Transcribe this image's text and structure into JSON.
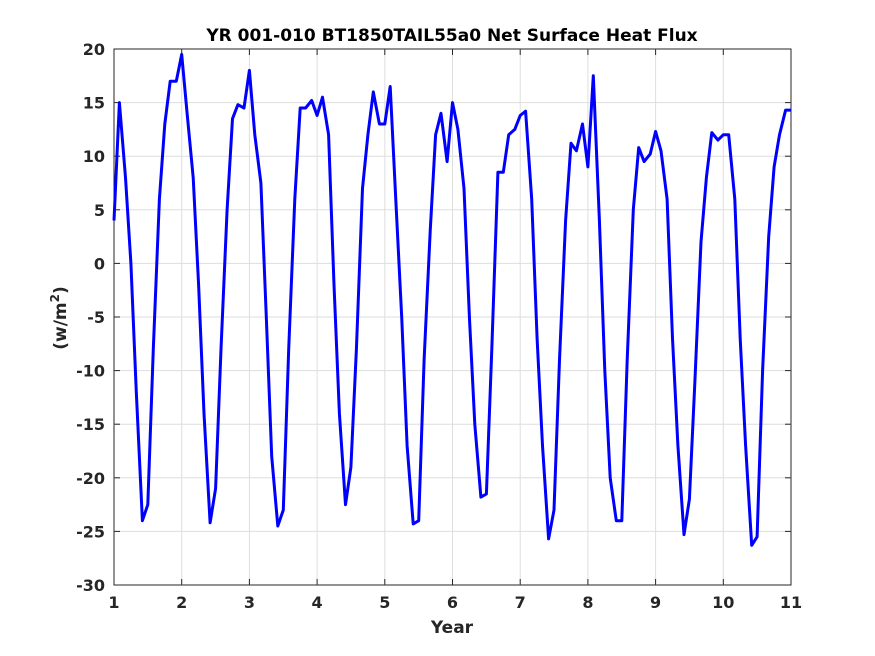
{
  "chart_data": {
    "type": "line",
    "title": "YR 001-010 BT1850TAIL55a0 Net Surface Heat Flux",
    "xlabel": "Year",
    "ylabel": "(w/m",
    "ylabel_superscript": "2",
    "ylabel_suffix": ")",
    "xlim": [
      1,
      11
    ],
    "ylim": [
      -30,
      20
    ],
    "xticks": [
      1,
      2,
      3,
      4,
      5,
      6,
      7,
      8,
      9,
      10,
      11
    ],
    "yticks": [
      -30,
      -25,
      -20,
      -15,
      -10,
      -5,
      0,
      5,
      10,
      15,
      20
    ],
    "grid": true,
    "series": [
      {
        "color": "#0000ff",
        "x": [
          1.0,
          1.08,
          1.17,
          1.25,
          1.33,
          1.42,
          1.5,
          1.58,
          1.67,
          1.75,
          1.83,
          1.92,
          2.0,
          2.08,
          2.17,
          2.25,
          2.33,
          2.42,
          2.5,
          2.58,
          2.67,
          2.75,
          2.83,
          2.92,
          3.0,
          3.08,
          3.17,
          3.25,
          3.33,
          3.42,
          3.5,
          3.58,
          3.67,
          3.75,
          3.83,
          3.92,
          4.0,
          4.08,
          4.17,
          4.25,
          4.33,
          4.42,
          4.5,
          4.58,
          4.67,
          4.75,
          4.83,
          4.92,
          5.0,
          5.08,
          5.17,
          5.25,
          5.33,
          5.42,
          5.5,
          5.58,
          5.67,
          5.75,
          5.83,
          5.92,
          6.0,
          6.08,
          6.17,
          6.25,
          6.33,
          6.42,
          6.5,
          6.58,
          6.67,
          6.75,
          6.83,
          6.92,
          7.0,
          7.08,
          7.17,
          7.25,
          7.33,
          7.42,
          7.5,
          7.58,
          7.67,
          7.75,
          7.83,
          7.92,
          8.0,
          8.08,
          8.17,
          8.25,
          8.33,
          8.42,
          8.5,
          8.58,
          8.67,
          8.75,
          8.83,
          8.92,
          9.0,
          9.08,
          9.17,
          9.25,
          9.33,
          9.42,
          9.5,
          9.58,
          9.67,
          9.75,
          9.83,
          9.92,
          10.0,
          10.08,
          10.17,
          10.25,
          10.33,
          10.42,
          10.5,
          10.58,
          10.67,
          10.75,
          10.83,
          10.92,
          11.0
        ],
        "y": [
          4,
          15,
          8,
          0,
          -12,
          -24,
          -22.5,
          -8,
          6,
          13,
          17,
          17,
          19.5,
          14,
          8,
          -2,
          -14,
          -24.2,
          -21,
          -8,
          5,
          13.5,
          14.8,
          14.5,
          18,
          12,
          7.5,
          -5,
          -18,
          -24.5,
          -23,
          -8,
          6,
          14.5,
          14.5,
          15.2,
          13.8,
          15.5,
          12,
          -2,
          -14,
          -22.5,
          -19,
          -8,
          7,
          12,
          16,
          13,
          13,
          16.5,
          5,
          -5,
          -17,
          -24.3,
          -24,
          -9,
          3,
          12,
          14,
          9.5,
          15,
          12.5,
          7,
          -5,
          -15,
          -21.8,
          -21.5,
          -8,
          8.5,
          8.5,
          12,
          12.5,
          13.8,
          14.2,
          6,
          -7,
          -17,
          -25.7,
          -23,
          -9,
          4,
          11.2,
          10.5,
          13,
          9,
          17.5,
          4,
          -10,
          -20,
          -24,
          -24,
          -9,
          5,
          10.8,
          9.5,
          10.2,
          12.3,
          10.5,
          6,
          -7,
          -17,
          -25.3,
          -22,
          -11,
          2,
          8,
          12.2,
          11.5,
          12,
          12,
          6,
          -7,
          -17,
          -26.3,
          -25.5,
          -10,
          2.5,
          9,
          12,
          14.3,
          14.3
        ]
      }
    ]
  }
}
